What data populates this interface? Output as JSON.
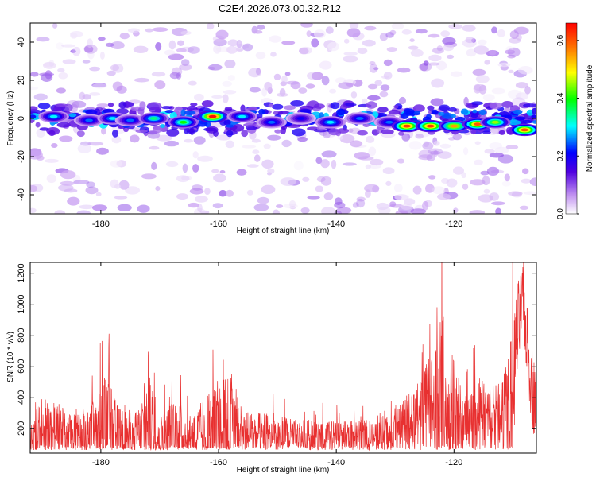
{
  "title": "C2E4.2026.073.00.32.R12",
  "colors": {
    "snr_line": "#e83030",
    "frame": "#000000"
  },
  "chart_data": [
    {
      "type": "heatmap",
      "xlabel": "Height of straight line (km)",
      "ylabel": "Frequency (Hz)",
      "xlim": [
        -192,
        -106
      ],
      "ylim": [
        -50,
        50
      ],
      "x_ticks": [
        -180,
        -160,
        -140,
        -120
      ],
      "y_ticks": [
        -40,
        -20,
        0,
        20,
        40
      ],
      "band_center_hz": 0,
      "band_halfwidth_hz": 4,
      "hotspots": [
        {
          "x": -188,
          "y": 1,
          "v": 0.3
        },
        {
          "x": -182,
          "y": -1,
          "v": 0.25
        },
        {
          "x": -178,
          "y": 0,
          "v": 0.3
        },
        {
          "x": -175,
          "y": -1,
          "v": 0.25
        },
        {
          "x": -171,
          "y": 0,
          "v": 0.35
        },
        {
          "x": -166,
          "y": -2,
          "v": 0.4
        },
        {
          "x": -161,
          "y": 1,
          "v": 0.65
        },
        {
          "x": -156,
          "y": 1,
          "v": 0.3
        },
        {
          "x": -151,
          "y": -2,
          "v": 0.25
        },
        {
          "x": -146,
          "y": 0,
          "v": 0.2
        },
        {
          "x": -141,
          "y": -2,
          "v": 0.3
        },
        {
          "x": -136,
          "y": 0,
          "v": 0.25
        },
        {
          "x": -131,
          "y": -2,
          "v": 0.25
        },
        {
          "x": -128,
          "y": -4,
          "v": 0.62
        },
        {
          "x": -124,
          "y": -4,
          "v": 0.62
        },
        {
          "x": -120,
          "y": -4,
          "v": 0.55
        },
        {
          "x": -116,
          "y": -3,
          "v": 0.6
        },
        {
          "x": -113,
          "y": -2,
          "v": 0.45
        },
        {
          "x": -108,
          "y": -6,
          "v": 0.6
        }
      ]
    },
    {
      "type": "colorbar",
      "label": "Normalized spectral amplitude",
      "range": [
        0.0,
        0.66
      ],
      "ticks": [
        {
          "value": 0.0,
          "label": "0.0"
        },
        {
          "value": 0.2,
          "label": "0.2"
        },
        {
          "value": 0.4,
          "label": "0.4"
        },
        {
          "value": 0.6,
          "label": "0.6"
        }
      ]
    },
    {
      "type": "line",
      "xlabel": "Height of straight line (km)",
      "ylabel": "SNR (10 * v/v)",
      "xlim": [
        -192,
        -106
      ],
      "ylim": [
        40,
        1270
      ],
      "x_ticks": [
        -180,
        -160,
        -140,
        -120
      ],
      "y_ticks": [
        200,
        400,
        600,
        800,
        1000,
        1200
      ],
      "envelope": [
        [
          -192,
          160,
          120
        ],
        [
          -190,
          170,
          250
        ],
        [
          -187,
          180,
          200
        ],
        [
          -185,
          150,
          150
        ],
        [
          -182,
          160,
          180
        ],
        [
          -179,
          170,
          440
        ],
        [
          -177,
          150,
          200
        ],
        [
          -174,
          160,
          170
        ],
        [
          -172,
          180,
          460
        ],
        [
          -170,
          150,
          200
        ],
        [
          -167,
          170,
          250
        ],
        [
          -165,
          150,
          150
        ],
        [
          -162,
          170,
          270
        ],
        [
          -160,
          160,
          350
        ],
        [
          -158,
          180,
          440
        ],
        [
          -156,
          150,
          200
        ],
        [
          -153,
          160,
          160
        ],
        [
          -150,
          150,
          150
        ],
        [
          -147,
          150,
          120
        ],
        [
          -144,
          140,
          130
        ],
        [
          -141,
          140,
          120
        ],
        [
          -138,
          140,
          120
        ],
        [
          -135,
          140,
          130
        ],
        [
          -132,
          150,
          150
        ],
        [
          -130,
          180,
          150
        ],
        [
          -128,
          210,
          230
        ],
        [
          -126,
          260,
          280
        ],
        [
          -124,
          320,
          400
        ],
        [
          -123,
          350,
          500
        ],
        [
          -122,
          380,
          700
        ],
        [
          -121,
          300,
          300
        ],
        [
          -120,
          330,
          550
        ],
        [
          -119,
          260,
          260
        ],
        [
          -118,
          240,
          200
        ],
        [
          -116,
          270,
          300
        ],
        [
          -114,
          260,
          250
        ],
        [
          -112,
          270,
          300
        ],
        [
          -111,
          300,
          400
        ],
        [
          -110,
          500,
          500
        ],
        [
          -109,
          860,
          350
        ],
        [
          -108.3,
          1060,
          200
        ],
        [
          -107.5,
          700,
          300
        ],
        [
          -106.5,
          420,
          300
        ],
        [
          -106,
          380,
          200
        ]
      ]
    }
  ]
}
